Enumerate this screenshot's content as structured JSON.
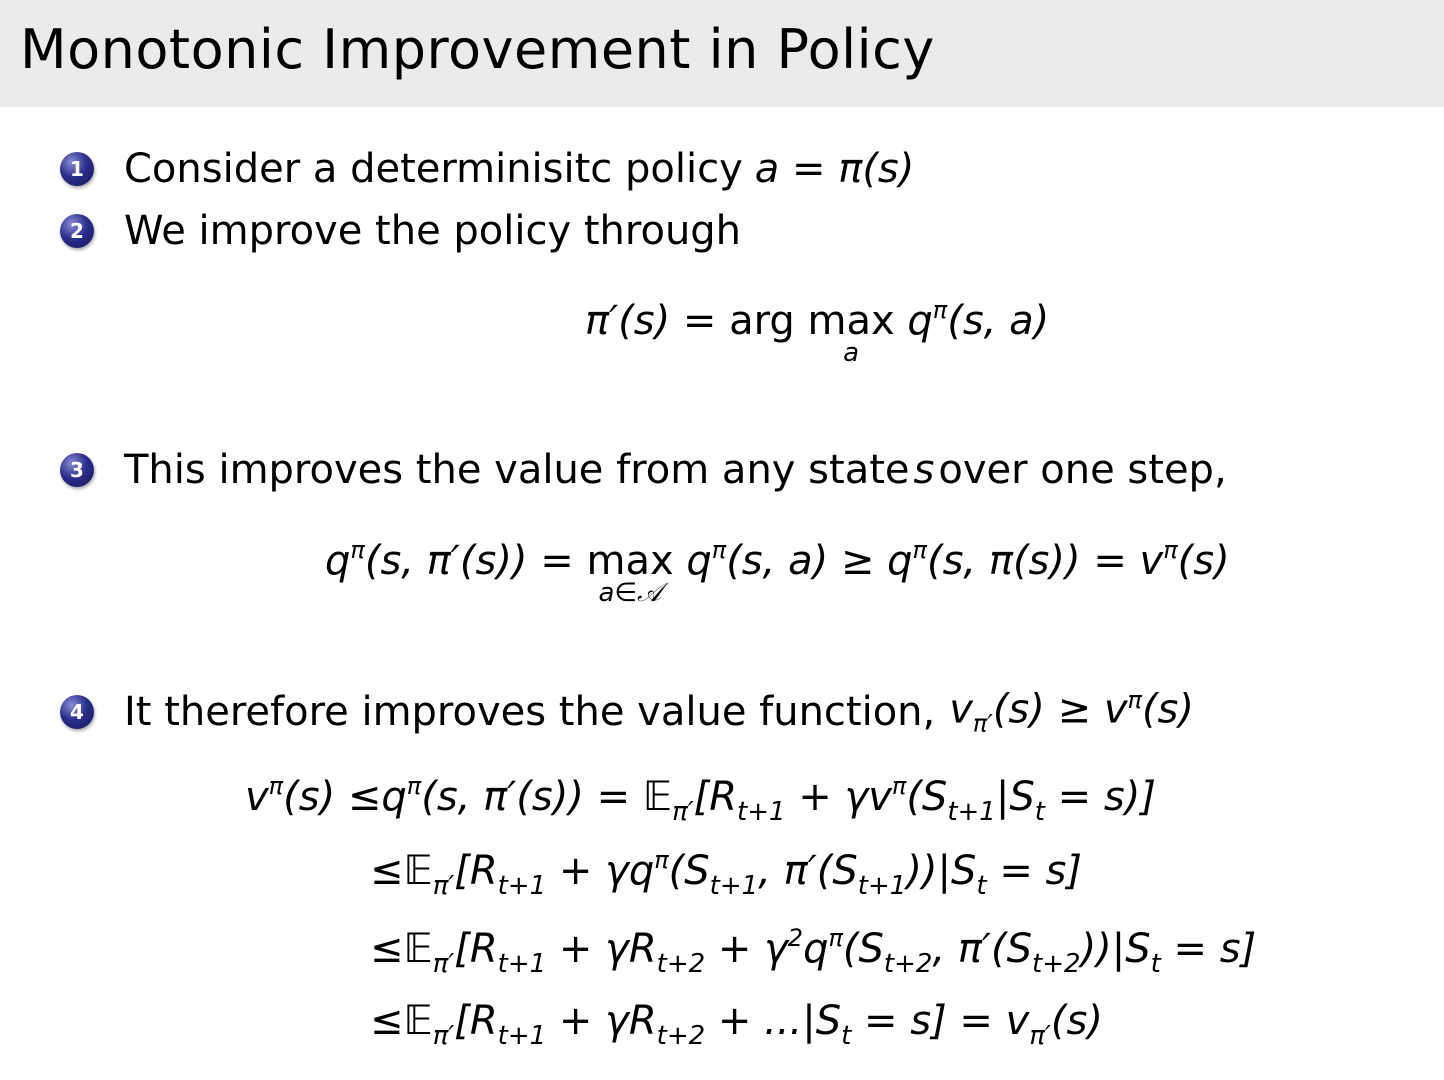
{
  "slide": {
    "title": "Monotonic Improvement in Policy",
    "bullet_color": "#2b2e8c",
    "items": [
      {
        "number": "1",
        "text": "Consider a determinisitc policy ",
        "math": "a = π(s)"
      },
      {
        "number": "2",
        "text": "We improve the policy through",
        "math": ""
      },
      {
        "number": "3",
        "text": "This improves the value from any state ",
        "math": "s",
        "text2": " over one step,"
      },
      {
        "number": "4",
        "text": "It therefore improves the value function, ",
        "math": "v",
        "math_sub": "π′",
        "math2": "(s) ≥ v",
        "math_sup": "π",
        "math3": "(s)"
      }
    ],
    "equations": [
      [
        {
          "t": "π′(s) = "
        },
        {
          "r": "arg "
        },
        {
          "under": [
            "max",
            "a"
          ]
        },
        {
          "t": " q"
        },
        {
          "sup": "π"
        },
        {
          "t": "(s, a)"
        }
      ],
      [
        {
          "t": "q"
        },
        {
          "sup": "π"
        },
        {
          "t": "(s, π′(s)) = "
        },
        {
          "under": [
            "max",
            "a∈𝒜"
          ]
        },
        {
          "t": " q"
        },
        {
          "sup": "π"
        },
        {
          "t": "(s, a) ≥ q"
        },
        {
          "sup": "π"
        },
        {
          "t": "(s, π(s)) = v"
        },
        {
          "sup": "π"
        },
        {
          "t": "(s)"
        }
      ],
      [
        {
          "t": "v"
        },
        {
          "sup": "π"
        },
        {
          "t": "(s) ≤q"
        },
        {
          "sup": "π"
        },
        {
          "t": "(s, π′(s)) = "
        },
        {
          "r": "𝔼"
        },
        {
          "sub": "π′"
        },
        {
          "t": "[R"
        },
        {
          "sub": "t+1"
        },
        {
          "t": " + γv"
        },
        {
          "sup": "π"
        },
        {
          "t": "(S"
        },
        {
          "sub": "t+1"
        },
        {
          "t": "|S"
        },
        {
          "sub": "t"
        },
        {
          "t": " = s)]"
        }
      ],
      [
        {
          "t": "≤"
        },
        {
          "r": "𝔼"
        },
        {
          "sub": "π′"
        },
        {
          "t": "[R"
        },
        {
          "sub": "t+1"
        },
        {
          "t": " + γq"
        },
        {
          "sup": "π"
        },
        {
          "t": "(S"
        },
        {
          "sub": "t+1"
        },
        {
          "t": ", π′(S"
        },
        {
          "sub": "t+1"
        },
        {
          "t": "))|S"
        },
        {
          "sub": "t"
        },
        {
          "t": " = s]"
        }
      ],
      [
        {
          "t": "≤"
        },
        {
          "r": "𝔼"
        },
        {
          "sub": "π′"
        },
        {
          "t": "[R"
        },
        {
          "sub": "t+1"
        },
        {
          "t": " + γR"
        },
        {
          "sub": "t+2"
        },
        {
          "t": " + γ"
        },
        {
          "sup": "2"
        },
        {
          "t": "q"
        },
        {
          "sup": "π"
        },
        {
          "t": "(S"
        },
        {
          "sub": "t+2"
        },
        {
          "t": ", π′(S"
        },
        {
          "sub": "t+2"
        },
        {
          "t": "))|S"
        },
        {
          "sub": "t"
        },
        {
          "t": " = s]"
        }
      ],
      [
        {
          "t": "≤"
        },
        {
          "r": "𝔼"
        },
        {
          "sub": "π′"
        },
        {
          "t": "[R"
        },
        {
          "sub": "t+1"
        },
        {
          "t": " + γR"
        },
        {
          "sub": "t+2"
        },
        {
          "t": " + ...|S"
        },
        {
          "sub": "t"
        },
        {
          "t": " = s] = v"
        },
        {
          "sub": "π′"
        },
        {
          "t": "(s)"
        }
      ]
    ]
  }
}
